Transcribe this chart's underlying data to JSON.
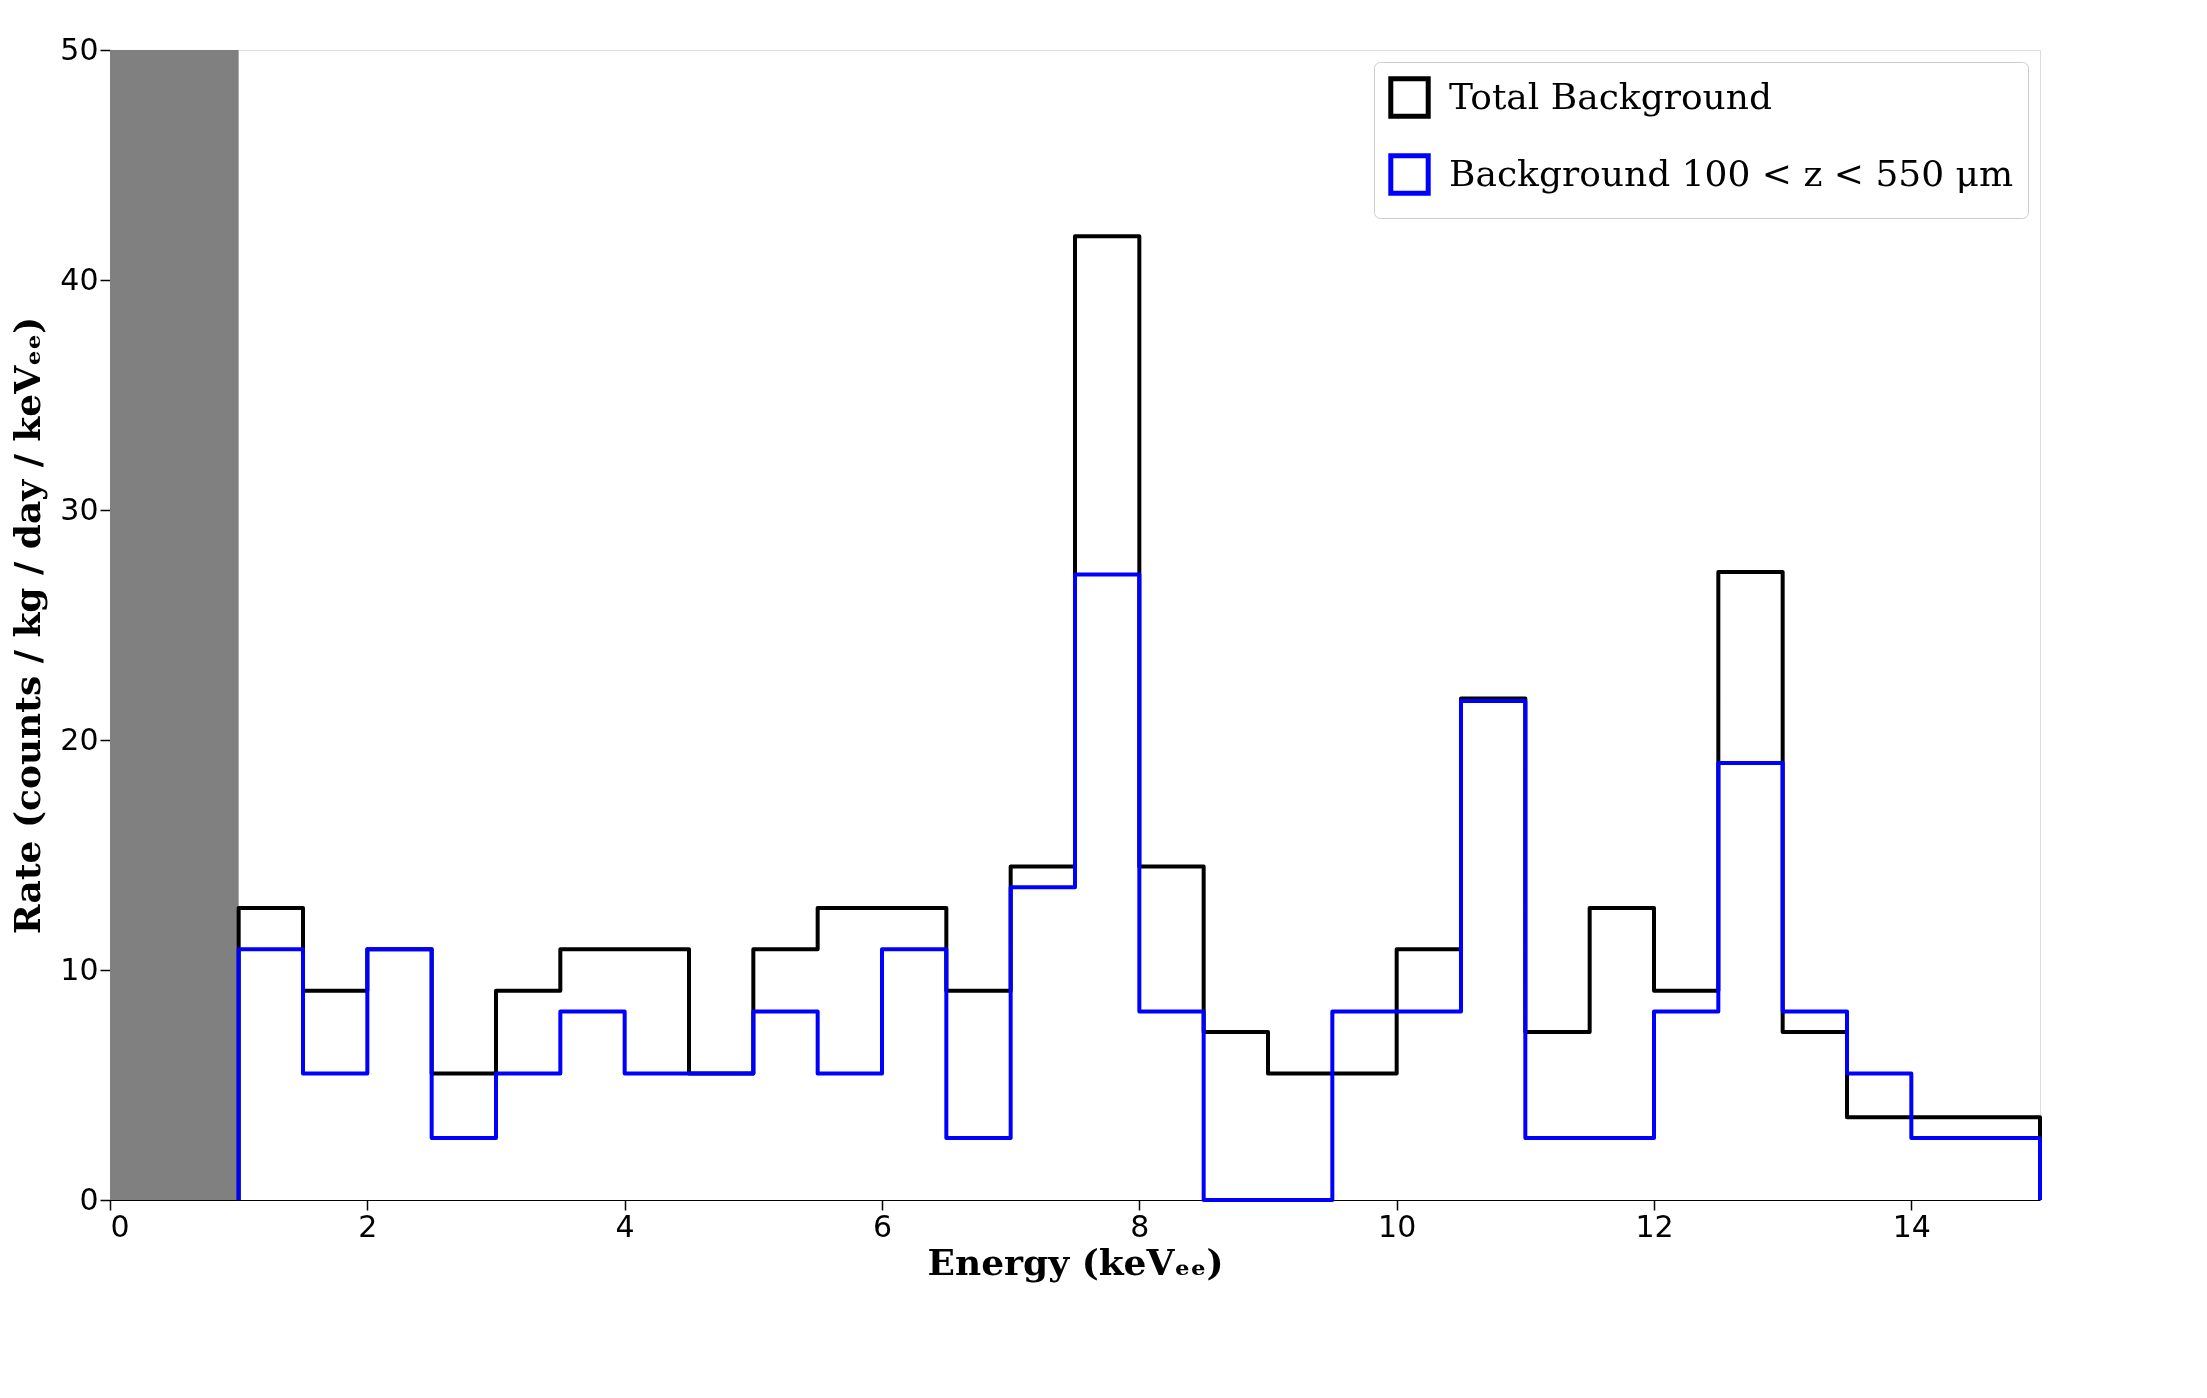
{
  "chart_data": {
    "type": "histogram",
    "xlabel": "Energy (keVₑₑ)",
    "ylabel": "Rate (counts / kg / day / keVₑₑ)",
    "bins": [
      1,
      1.5,
      2,
      2.5,
      3,
      3.5,
      4,
      4.5,
      5,
      5.5,
      6,
      6.5,
      7,
      7.5,
      8,
      8.5,
      9,
      9.5,
      10,
      10.5,
      11,
      11.5,
      12,
      12.5,
      13,
      13.5,
      14,
      14.5,
      15
    ],
    "series": [
      {
        "name": "Total Background",
        "color": "#000000",
        "values": [
          12.7,
          9.1,
          10.9,
          5.5,
          9.1,
          10.9,
          10.9,
          5.5,
          10.9,
          12.7,
          12.7,
          9.1,
          14.5,
          41.9,
          14.5,
          7.3,
          5.5,
          5.5,
          10.9,
          21.8,
          7.3,
          12.7,
          9.1,
          27.3,
          7.3,
          3.6,
          3.6,
          3.6
        ]
      },
      {
        "name": "Background 100 < z < 550 μm",
        "color": "#0000ff",
        "values": [
          10.9,
          5.5,
          10.9,
          2.7,
          5.5,
          8.2,
          5.5,
          5.5,
          8.2,
          5.5,
          10.9,
          2.7,
          13.6,
          27.2,
          8.2,
          0,
          0,
          8.2,
          8.2,
          21.7,
          2.7,
          2.7,
          8.2,
          19.0,
          8.2,
          5.5,
          2.7,
          2.7
        ]
      }
    ],
    "xlim": [
      0,
      15
    ],
    "ylim": [
      0,
      50
    ],
    "xticks": [
      0,
      2,
      4,
      6,
      8,
      10,
      12,
      14
    ],
    "yticks": [
      0,
      10,
      20,
      30,
      40,
      50
    ],
    "bands": [
      {
        "axis": "x",
        "from": 0,
        "to": 1,
        "color": "#808080"
      }
    ],
    "grid": false,
    "legend": "top right"
  }
}
